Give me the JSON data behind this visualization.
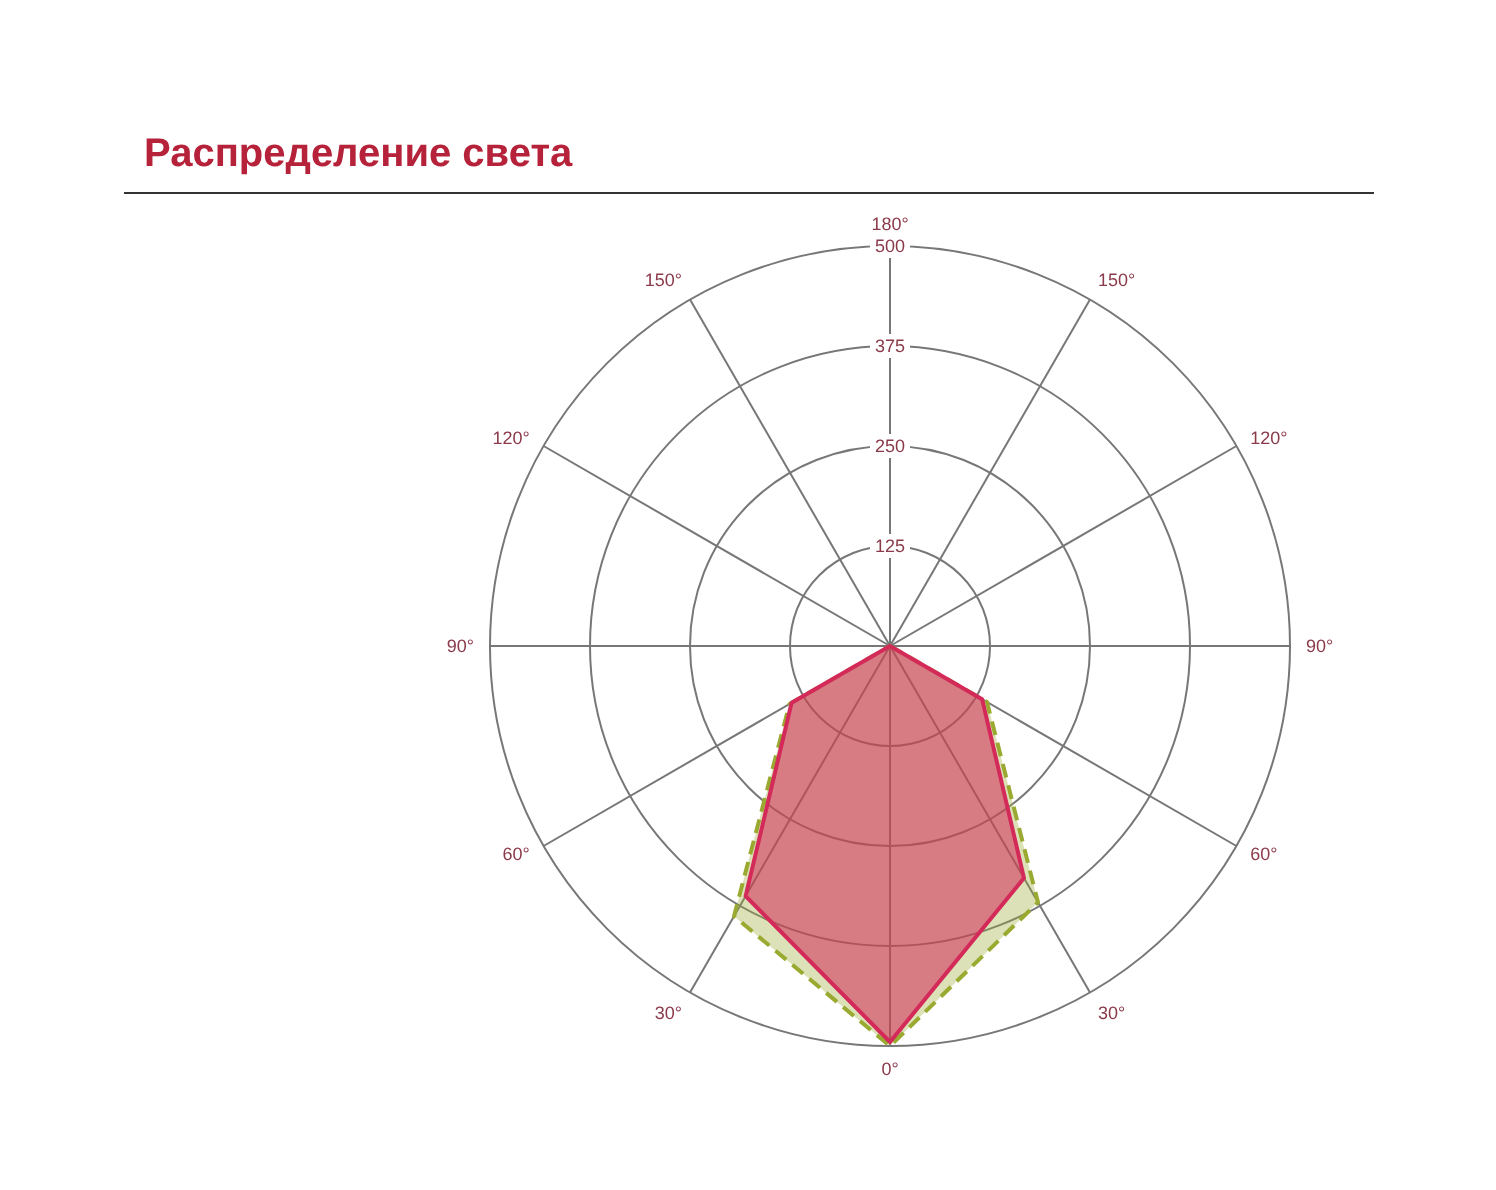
{
  "chart_data": {
    "type": "radar",
    "title": "Распределение света",
    "categories": [
      "180°",
      "150°",
      "120°",
      "90°",
      "60°",
      "30°",
      "0°",
      "30°",
      "60°",
      "90°",
      "120°",
      "150°"
    ],
    "series": [
      {
        "color": "#9aaa30",
        "line_style": "dashed",
        "values": [
          0,
          0,
          0,
          0,
          140,
          370,
          500,
          390,
          145,
          0,
          0,
          0
        ]
      },
      {
        "color": "#d42a5a",
        "line_style": "solid",
        "values": [
          0,
          0,
          0,
          0,
          133,
          335,
          495,
          361,
          142,
          0,
          0,
          0
        ]
      }
    ],
    "ylim": [
      0,
      500
    ],
    "yticks": [
      125,
      250,
      375,
      500
    ],
    "grid": true
  }
}
